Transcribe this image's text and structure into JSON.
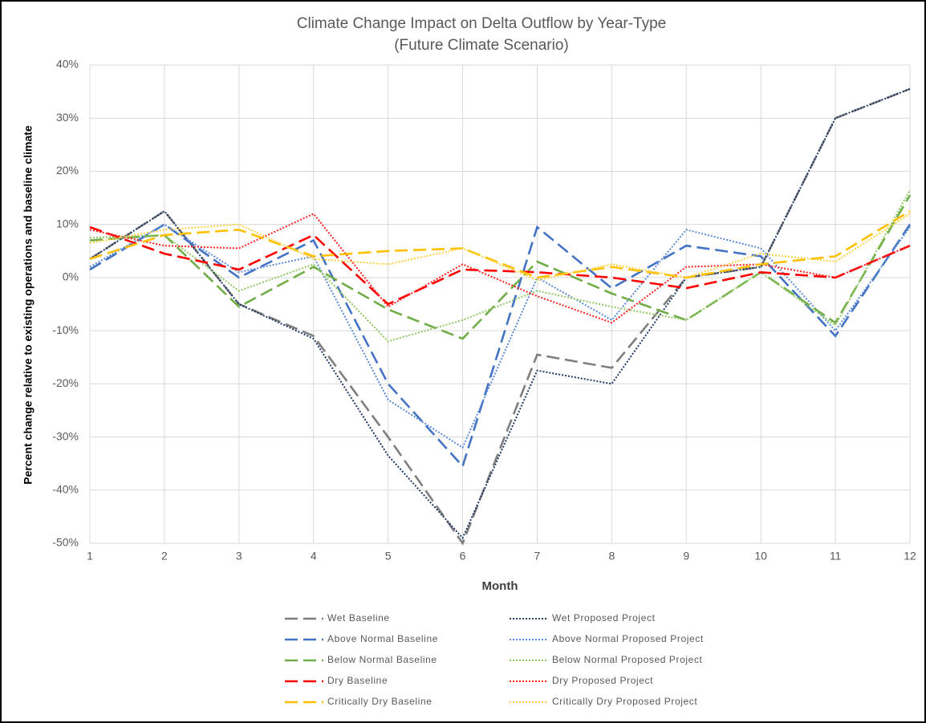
{
  "chart_data": {
    "type": "line",
    "title": "Climate Change Impact on Delta Outflow by Year-Type",
    "subtitle": "(Future Climate Scenario)",
    "x_label": "Month",
    "y_label": "Percent change relative to existing operations and baseline climate",
    "x": [
      1,
      2,
      3,
      4,
      5,
      6,
      7,
      8,
      9,
      10,
      11,
      12
    ],
    "xlim": [
      1,
      12
    ],
    "xticks": [
      1,
      2,
      3,
      4,
      5,
      6,
      7,
      8,
      9,
      10,
      11,
      12
    ],
    "ylim": [
      -50,
      40
    ],
    "yticks": [
      {
        "value": -50,
        "label": "-50%"
      },
      {
        "value": -40,
        "label": "-40%"
      },
      {
        "value": -30,
        "label": "-30%"
      },
      {
        "value": -20,
        "label": "-20%"
      },
      {
        "value": -10,
        "label": "-10%"
      },
      {
        "value": 0,
        "label": "0%"
      },
      {
        "value": 10,
        "label": "10%"
      },
      {
        "value": 20,
        "label": "20%"
      },
      {
        "value": 30,
        "label": "30%"
      },
      {
        "value": 40,
        "label": "40%"
      }
    ],
    "grid": true,
    "legend": "bottom",
    "series": [
      {
        "name": "Wet Baseline",
        "color": "#7f7f7f",
        "linestyle": "dashed",
        "values": [
          3.5,
          12.5,
          -5,
          -11,
          -30,
          -50,
          -14.5,
          -17,
          0,
          2,
          30,
          35.5
        ]
      },
      {
        "name": "Wet Proposed Project",
        "color": "#203864",
        "linestyle": "dotted",
        "values": [
          3.5,
          12.5,
          -5,
          -11.5,
          -33.5,
          -49,
          -17.5,
          -20,
          0,
          2,
          30,
          35.5
        ]
      },
      {
        "name": "Above Normal Baseline",
        "color": "#4472c4",
        "linestyle": "dashed",
        "values": [
          1.5,
          10,
          0,
          7,
          -20,
          -35.5,
          9.5,
          -2,
          6,
          4,
          -11,
          10
        ]
      },
      {
        "name": "Above Normal Proposed Project",
        "color": "#5b8bd6",
        "linestyle": "dotted",
        "values": [
          2,
          10,
          1,
          4,
          -23,
          -32,
          0,
          -8,
          9,
          5.5,
          -10,
          9.5
        ]
      },
      {
        "name": "Below Normal Baseline",
        "color": "#70ad47",
        "linestyle": "dashed",
        "values": [
          7,
          8,
          -5.5,
          2,
          -6,
          -11.5,
          3,
          -3,
          -8,
          1,
          -8.5,
          15.5
        ]
      },
      {
        "name": "Below Normal Proposed Project",
        "color": "#8fc862",
        "linestyle": "dotted",
        "values": [
          7.5,
          8,
          -2.5,
          2.5,
          -12,
          -8,
          -2.5,
          -5.5,
          -8,
          1,
          -9,
          16.5
        ]
      },
      {
        "name": "Dry Baseline",
        "color": "#ff0000",
        "linestyle": "dashed",
        "values": [
          9.5,
          4.5,
          1.5,
          8,
          -5,
          1.5,
          1,
          0,
          -2,
          1,
          0,
          6
        ]
      },
      {
        "name": "Dry Proposed Project",
        "color": "#ff2020",
        "linestyle": "dotted",
        "values": [
          9,
          6,
          5.5,
          12,
          -5.5,
          2.5,
          -3.5,
          -8.5,
          2,
          2.5,
          0,
          6
        ]
      },
      {
        "name": "Critically Dry Baseline",
        "color": "#ffc000",
        "linestyle": "dashed",
        "values": [
          3.5,
          8,
          9,
          4,
          5,
          5.5,
          0,
          2,
          0,
          2.5,
          4,
          12.5
        ]
      },
      {
        "name": "Critically Dry Proposed Project",
        "color": "#ffd040",
        "linestyle": "dotted",
        "values": [
          6.5,
          9,
          10,
          3.5,
          2.5,
          5.5,
          -0.5,
          2.5,
          0,
          4.5,
          3,
          12
        ]
      }
    ]
  }
}
